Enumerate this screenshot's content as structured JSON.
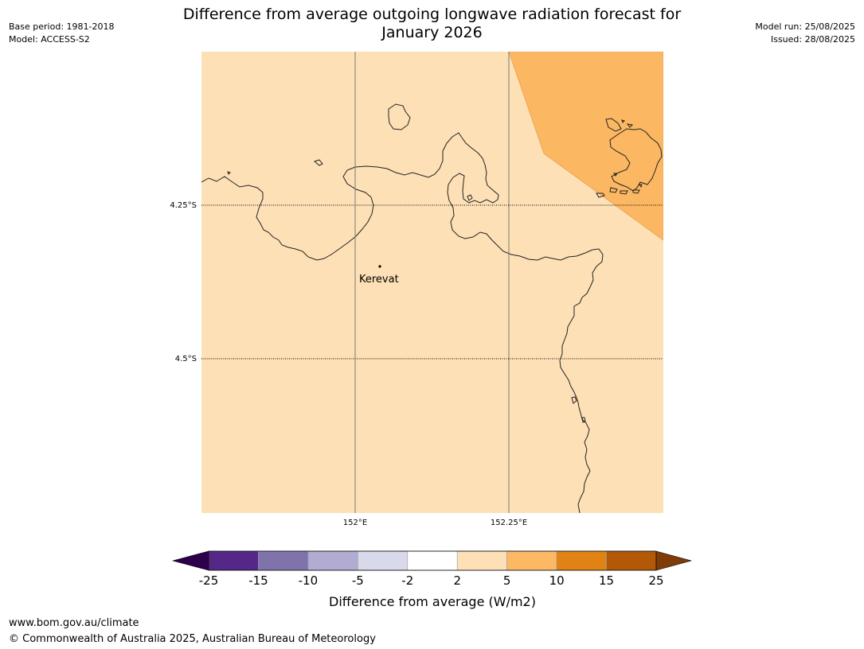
{
  "header": {
    "title_line1": "Difference from average outgoing longwave radiation forecast for",
    "title_line2": "January 2026",
    "base_period": "Base period: 1981-2018",
    "model": "Model: ACCESS-S2",
    "model_run": "Model run: 25/08/2025",
    "issued": "Issued: 28/08/2025"
  },
  "map": {
    "lat_labels": [
      "4.25°S",
      "4.5°S"
    ],
    "lon_labels": [
      "152°E",
      "152.25°E"
    ],
    "place_label": "Kerevat",
    "background_category_color": "#fde0b6",
    "anomaly_region_color": "#fbb762",
    "coastline_color": "#222222"
  },
  "colorbar": {
    "label": "Difference from average (W/m2)",
    "ticks": [
      "-25",
      "-15",
      "-10",
      "-5",
      "-2",
      "2",
      "5",
      "10",
      "15",
      "25"
    ],
    "extend_low_color": "#2d004b",
    "extend_high_color": "#7f3b08",
    "colors": [
      "#542788",
      "#8073ac",
      "#b2abd2",
      "#d8daeb",
      "#ffffff",
      "#fee0b6",
      "#fdb863",
      "#e08214",
      "#b35806"
    ]
  },
  "footer": {
    "website": "www.bom.gov.au/climate",
    "copyright": "© Commonwealth of Australia 2025, Australian Bureau of Meteorology"
  }
}
